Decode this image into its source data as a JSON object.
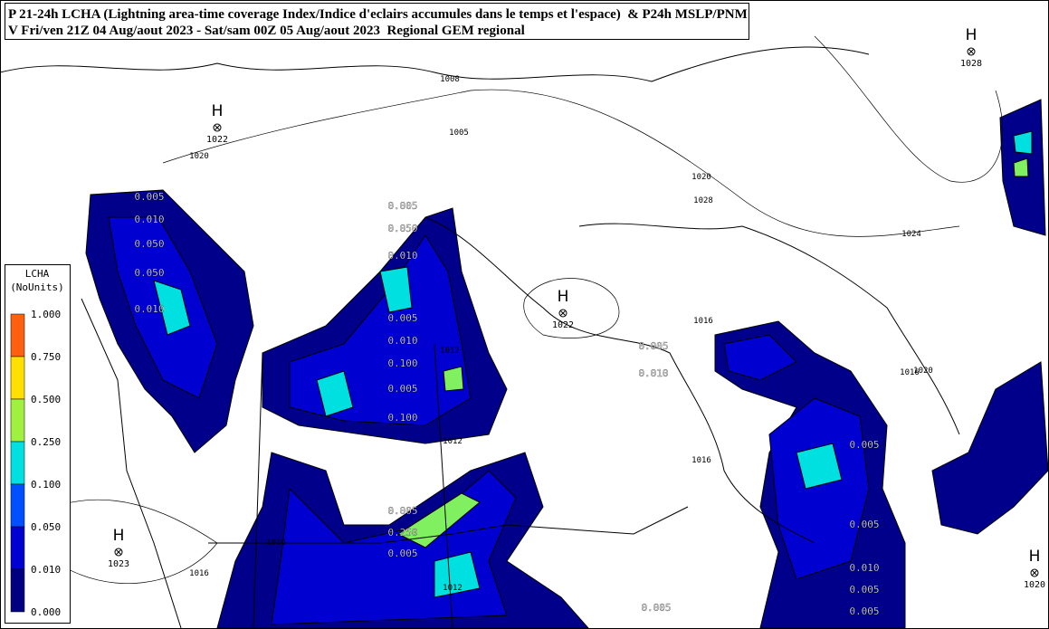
{
  "header": {
    "line1": "P 21-24h LCHA (Lightning area-time coverage Index/Indice d'eclairs accumules dans le temps et l'espace)  & P24h MSLP/PNM",
    "line2": "V Fri/ven 21Z 04 Aug/aout 2023 - Sat/sam 00Z 05 Aug/aout 2023  Regional GEM regional"
  },
  "legend": {
    "title": "LCHA",
    "units": "(NoUnits)",
    "levels": [
      "1.000",
      "0.750",
      "0.500",
      "0.250",
      "0.100",
      "0.050",
      "0.010",
      "0.000"
    ]
  },
  "pressure_centers": [
    {
      "symbol": "H",
      "value": "1022"
    },
    {
      "symbol": "H",
      "value": "1022"
    },
    {
      "symbol": "H",
      "value": "1028"
    },
    {
      "symbol": "H",
      "value": "1023"
    },
    {
      "symbol": "H",
      "value": "1020"
    }
  ],
  "isobar_labels": [
    "1020",
    "1005",
    "1020",
    "1028",
    "1024",
    "1016",
    "1016",
    "1012",
    "1012",
    "1016",
    "1016",
    "1012",
    "1016",
    "1020",
    "1008"
  ],
  "lightning_labels": [
    "0.005",
    "0.010",
    "0.050",
    "0.050",
    "0.010",
    "0.005",
    "0.050",
    "0.010",
    "0.005",
    "0.010",
    "0.100",
    "0.005",
    "0.100",
    "0.005",
    "0.010",
    "0.005",
    "0.250",
    "0.005",
    "0.005",
    "0.005",
    "0.010",
    "0.005",
    "0.005",
    "0.005"
  ]
}
